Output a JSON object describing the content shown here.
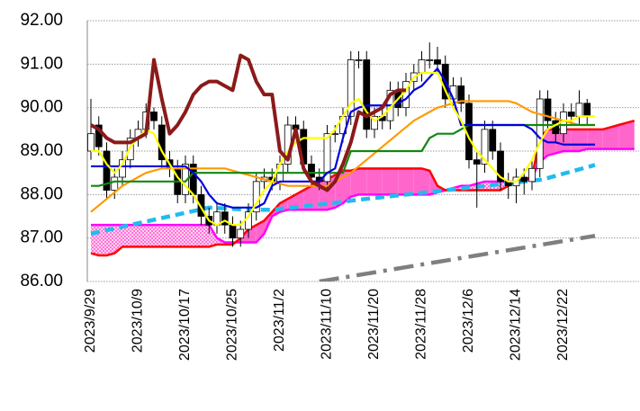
{
  "chart_data": {
    "type": "candlestick",
    "categories": [
      "2023/9/29",
      null,
      null,
      null,
      null,
      null,
      "2023/10/9",
      null,
      null,
      null,
      null,
      null,
      "2023/10/17",
      null,
      null,
      null,
      null,
      null,
      "2023/10/25",
      null,
      null,
      null,
      null,
      null,
      "2023/11/2",
      null,
      null,
      null,
      null,
      null,
      "2023/11/10",
      null,
      null,
      null,
      null,
      null,
      "2023/11/20",
      null,
      null,
      null,
      null,
      null,
      "2023/11/28",
      null,
      null,
      null,
      null,
      null,
      "2023/12/6",
      null,
      null,
      null,
      null,
      null,
      "2023/12/14",
      null,
      null,
      null,
      null,
      null,
      "2023/12/22",
      null,
      null,
      null,
      null,
      null,
      null,
      null,
      null,
      null
    ],
    "ylim": [
      86,
      92
    ],
    "yticks": [
      {
        "value": 86,
        "label": "86.00"
      },
      {
        "value": 87,
        "label": "87.00"
      },
      {
        "value": 88,
        "label": "88.00"
      },
      {
        "value": 89,
        "label": "89.00"
      },
      {
        "value": 90,
        "label": "90.00"
      },
      {
        "value": 91,
        "label": "91.00"
      },
      {
        "value": 92,
        "label": "92.00"
      }
    ],
    "grid": true,
    "candles": {
      "up_color": "#ffffff",
      "down_color": "#000000",
      "open": [
        89.0,
        89.6,
        89.0,
        88.1,
        88.4,
        88.8,
        89.3,
        89.5,
        89.9,
        89.6,
        88.8,
        88.6,
        88.0,
        88.7,
        88.0,
        87.5,
        87.3,
        87.6,
        87.3,
        87.0,
        87.2,
        87.6,
        88.3,
        88.4,
        88.3,
        88.7,
        89.6,
        89.5,
        88.7,
        88.4,
        88.3,
        89.4,
        89.4,
        89.8,
        91.1,
        91.1,
        89.5,
        89.8,
        89.7,
        90.4,
        90.0,
        90.6,
        90.8,
        91.1,
        91.1,
        91.0,
        90.2,
        90.5,
        90.1,
        88.8,
        88.7,
        89.5,
        89.0,
        88.3,
        88.2,
        88.4,
        88.3,
        88.6,
        90.2,
        89.7,
        89.4,
        89.9,
        89.8,
        90.1,
        null,
        null,
        null,
        null,
        null,
        null
      ],
      "high": [
        90.2,
        89.8,
        89.2,
        88.6,
        89.0,
        89.5,
        89.7,
        90.1,
        90.0,
        89.8,
        89.0,
        88.8,
        88.9,
        88.9,
        88.2,
        87.7,
        87.8,
        87.8,
        87.5,
        87.4,
        87.8,
        88.5,
        88.6,
        88.6,
        88.9,
        89.8,
        89.8,
        89.7,
        88.9,
        88.6,
        89.6,
        89.6,
        90.0,
        91.3,
        91.3,
        91.3,
        90.0,
        90.0,
        90.6,
        90.6,
        90.8,
        91.0,
        91.3,
        91.5,
        91.4,
        91.2,
        90.7,
        90.7,
        90.3,
        89.0,
        89.7,
        89.7,
        89.2,
        88.5,
        88.6,
        88.6,
        88.8,
        90.4,
        90.4,
        89.9,
        90.1,
        90.1,
        90.4,
        90.2,
        null,
        null,
        null,
        null,
        null,
        null
      ],
      "low": [
        88.8,
        88.9,
        87.9,
        87.9,
        88.2,
        88.6,
        89.1,
        89.3,
        89.5,
        88.6,
        88.4,
        87.8,
        87.8,
        87.8,
        87.3,
        87.1,
        87.1,
        87.1,
        86.8,
        86.8,
        87.0,
        87.4,
        88.1,
        88.1,
        88.1,
        88.5,
        89.3,
        88.5,
        88.2,
        88.1,
        88.1,
        89.2,
        89.2,
        89.6,
        90.9,
        89.3,
        89.3,
        89.5,
        89.5,
        89.8,
        89.8,
        90.4,
        90.6,
        90.9,
        90.8,
        90.0,
        90.0,
        89.9,
        88.6,
        87.7,
        88.5,
        88.8,
        88.1,
        87.9,
        87.8,
        88.0,
        88.1,
        88.4,
        89.5,
        89.2,
        89.2,
        89.6,
        89.6,
        89.6,
        null,
        null,
        null,
        null,
        null,
        null
      ],
      "close": [
        89.4,
        89.1,
        88.1,
        88.4,
        88.8,
        89.3,
        89.5,
        89.9,
        89.7,
        88.8,
        88.6,
        88.0,
        88.7,
        88.0,
        87.5,
        87.3,
        87.6,
        87.3,
        87.0,
        87.2,
        87.6,
        88.3,
        88.4,
        88.3,
        88.7,
        89.6,
        89.5,
        88.7,
        88.4,
        88.3,
        89.4,
        89.4,
        89.8,
        91.1,
        91.1,
        89.5,
        89.8,
        89.7,
        90.4,
        90.0,
        90.6,
        90.8,
        91.1,
        91.1,
        91.0,
        90.2,
        90.5,
        90.1,
        88.8,
        88.7,
        89.5,
        89.0,
        88.3,
        88.2,
        88.4,
        88.3,
        88.6,
        90.2,
        89.7,
        89.4,
        89.9,
        89.8,
        90.1,
        89.8,
        null,
        null,
        null,
        null,
        null,
        null
      ]
    },
    "cloud": {
      "fill_color": "#ff66cc",
      "a_color": "#ff0000",
      "b_color": "#ff00ff",
      "a": [
        86.65,
        86.6,
        86.6,
        86.65,
        86.8,
        86.8,
        86.8,
        86.8,
        86.8,
        86.8,
        86.8,
        86.8,
        86.8,
        86.8,
        86.8,
        86.8,
        86.85,
        86.85,
        86.85,
        87.0,
        87.2,
        87.3,
        87.4,
        87.6,
        87.8,
        87.9,
        88.0,
        88.1,
        88.2,
        88.3,
        88.35,
        88.45,
        88.55,
        88.55,
        88.6,
        88.6,
        88.6,
        88.6,
        88.6,
        88.6,
        88.6,
        88.6,
        88.6,
        88.55,
        88.2,
        88.1,
        88.1,
        88.1,
        88.1,
        88.1,
        88.1,
        88.1,
        88.1,
        88.2,
        88.3,
        88.35,
        88.4,
        89.3,
        89.5,
        89.5,
        89.5,
        89.5,
        89.5,
        89.5,
        89.5,
        89.5,
        89.55,
        89.6,
        89.65,
        89.7
      ],
      "b": [
        87.3,
        87.3,
        87.3,
        87.3,
        87.3,
        87.3,
        87.3,
        87.3,
        87.3,
        87.3,
        87.3,
        87.3,
        87.3,
        87.3,
        87.3,
        87.3,
        87.0,
        86.9,
        86.9,
        86.9,
        86.9,
        86.9,
        87.1,
        87.5,
        87.6,
        87.65,
        87.65,
        87.65,
        87.65,
        87.65,
        87.65,
        87.7,
        87.8,
        87.95,
        88.0,
        88.0,
        88.0,
        88.0,
        88.0,
        88.0,
        88.0,
        88.0,
        88.0,
        88.0,
        88.05,
        88.1,
        88.15,
        88.2,
        88.2,
        88.25,
        88.3,
        88.3,
        88.3,
        88.3,
        88.3,
        88.3,
        88.4,
        88.75,
        88.9,
        88.95,
        89.0,
        89.0,
        89.0,
        89.05,
        89.05,
        89.05,
        89.05,
        89.05,
        89.05,
        89.05
      ]
    },
    "series": [
      {
        "color": "#22bbee",
        "dash": "dashed",
        "values": [
          87.1,
          87.14,
          87.18,
          87.22,
          87.26,
          87.3,
          87.34,
          87.38,
          87.42,
          87.46,
          87.5,
          87.54,
          87.58,
          87.62,
          87.66,
          87.7,
          87.69,
          87.68,
          87.67,
          87.66,
          87.65,
          87.65,
          87.65,
          87.65,
          87.67,
          87.69,
          87.71,
          87.73,
          87.75,
          87.77,
          87.79,
          87.81,
          87.83,
          87.86,
          87.88,
          87.9,
          87.92,
          87.94,
          87.96,
          87.98,
          88.0,
          88.02,
          88.04,
          88.06,
          88.08,
          88.1,
          88.12,
          88.14,
          88.16,
          88.18,
          88.2,
          88.22,
          88.24,
          88.26,
          88.28,
          88.3,
          88.32,
          88.34,
          88.38,
          88.43,
          88.48,
          88.53,
          88.58,
          88.63,
          88.68,
          null,
          null,
          null,
          null,
          null
        ]
      },
      {
        "color": "#7f7f7f",
        "dash": "dash-dot",
        "values": [
          null,
          null,
          null,
          null,
          null,
          null,
          null,
          null,
          null,
          null,
          null,
          null,
          null,
          null,
          null,
          null,
          null,
          null,
          null,
          null,
          null,
          null,
          null,
          null,
          null,
          null,
          null,
          null,
          null,
          86.0,
          86.03,
          86.06,
          86.09,
          86.12,
          86.15,
          86.18,
          86.21,
          86.24,
          86.27,
          86.3,
          86.33,
          86.36,
          86.39,
          86.42,
          86.45,
          86.48,
          86.51,
          86.54,
          86.57,
          86.6,
          86.63,
          86.66,
          86.69,
          86.72,
          86.75,
          86.78,
          86.81,
          86.84,
          86.87,
          86.9,
          86.93,
          86.96,
          86.99,
          87.02,
          87.05,
          null,
          null,
          null,
          null,
          null
        ]
      },
      {
        "color": "#ff9900",
        "dash": "solid",
        "values": [
          87.6,
          87.75,
          87.9,
          88.05,
          88.2,
          88.3,
          88.4,
          88.5,
          88.55,
          88.6,
          88.6,
          88.6,
          88.6,
          88.6,
          88.6,
          88.6,
          88.6,
          88.6,
          88.55,
          88.5,
          88.45,
          88.4,
          88.35,
          88.3,
          88.25,
          88.2,
          88.2,
          88.2,
          88.2,
          88.2,
          88.2,
          88.3,
          88.4,
          88.5,
          88.65,
          88.8,
          88.95,
          89.1,
          89.25,
          89.4,
          89.55,
          89.7,
          89.8,
          89.9,
          90.0,
          90.05,
          90.1,
          90.15,
          90.15,
          90.15,
          90.15,
          90.15,
          90.15,
          90.15,
          90.1,
          90.0,
          89.9,
          89.85,
          89.8,
          89.75,
          89.7,
          89.65,
          89.6,
          89.6,
          89.6,
          null,
          null,
          null,
          null,
          null
        ]
      },
      {
        "color": "#118811",
        "dash": "solid",
        "values": [
          88.2,
          88.2,
          88.25,
          88.3,
          88.3,
          88.3,
          88.3,
          88.3,
          88.3,
          88.3,
          88.3,
          88.3,
          88.3,
          88.5,
          88.5,
          88.5,
          88.5,
          88.5,
          88.5,
          88.5,
          88.5,
          88.5,
          88.5,
          88.5,
          88.5,
          88.5,
          88.5,
          88.5,
          88.5,
          88.5,
          88.5,
          88.5,
          88.5,
          89.0,
          89.0,
          89.0,
          89.0,
          89.0,
          89.0,
          89.0,
          89.0,
          89.0,
          89.0,
          89.3,
          89.4,
          89.4,
          89.4,
          89.5,
          89.6,
          89.6,
          89.6,
          89.6,
          89.6,
          89.6,
          89.6,
          89.6,
          89.6,
          89.6,
          89.6,
          89.6,
          89.6,
          89.6,
          89.6,
          89.6,
          89.6,
          null,
          null,
          null,
          null,
          null
        ]
      },
      {
        "color": "#0000dd",
        "dash": "solid",
        "values": [
          88.65,
          88.65,
          88.65,
          88.65,
          88.65,
          88.65,
          88.65,
          88.65,
          88.65,
          88.65,
          88.65,
          88.65,
          88.65,
          88.5,
          88.3,
          88.0,
          87.8,
          87.75,
          87.7,
          87.7,
          87.7,
          87.7,
          87.8,
          88.2,
          88.3,
          88.3,
          88.3,
          88.3,
          88.3,
          88.3,
          88.5,
          88.6,
          89.3,
          89.9,
          90.0,
          90.05,
          90.05,
          90.05,
          90.05,
          90.1,
          90.2,
          90.4,
          90.5,
          90.7,
          90.9,
          90.6,
          90.2,
          89.6,
          89.6,
          89.6,
          89.6,
          89.6,
          89.6,
          89.6,
          89.6,
          89.6,
          89.5,
          89.3,
          89.2,
          89.2,
          89.15,
          89.15,
          89.15,
          89.15,
          89.15,
          null,
          null,
          null,
          null,
          null
        ]
      },
      {
        "color": "#ffff00",
        "dash": "solid",
        "values": [
          89.0,
          89.0,
          88.7,
          88.5,
          88.7,
          89.1,
          89.3,
          89.5,
          89.4,
          89.0,
          88.7,
          88.4,
          88.2,
          88.0,
          87.7,
          87.4,
          87.3,
          87.4,
          87.3,
          87.3,
          87.5,
          87.8,
          88.1,
          88.3,
          88.7,
          89.0,
          89.2,
          89.3,
          89.3,
          89.3,
          89.3,
          89.5,
          89.8,
          90.1,
          90.2,
          89.9,
          89.7,
          89.8,
          90.0,
          90.2,
          90.4,
          90.7,
          90.8,
          90.8,
          90.8,
          90.4,
          90.0,
          89.7,
          89.3,
          89.0,
          88.8,
          88.6,
          88.4,
          88.3,
          88.3,
          88.5,
          88.8,
          89.2,
          89.5,
          89.6,
          89.7,
          89.7,
          89.8,
          89.8,
          89.8,
          null,
          null,
          null,
          null,
          null
        ]
      },
      {
        "color": "#8b1a1a",
        "dash": "solid",
        "values": [
          89.6,
          89.5,
          89.3,
          89.2,
          89.2,
          89.2,
          89.3,
          89.4,
          91.1,
          90.2,
          89.4,
          89.6,
          89.9,
          90.3,
          90.5,
          90.6,
          90.6,
          90.5,
          90.4,
          91.2,
          91.1,
          90.6,
          90.3,
          90.3,
          89.0,
          88.8,
          89.5,
          88.6,
          88.3,
          88.2,
          88.1,
          88.3,
          88.7,
          89.2,
          89.9,
          89.8,
          89.9,
          90.0,
          90.3,
          90.4,
          90.4,
          null,
          null,
          null,
          null,
          null,
          null,
          null,
          null,
          null,
          null,
          null,
          null,
          null,
          null,
          null,
          null,
          null,
          null,
          null,
          null,
          null,
          null,
          null,
          null,
          null,
          null,
          null,
          null,
          null
        ]
      }
    ]
  }
}
